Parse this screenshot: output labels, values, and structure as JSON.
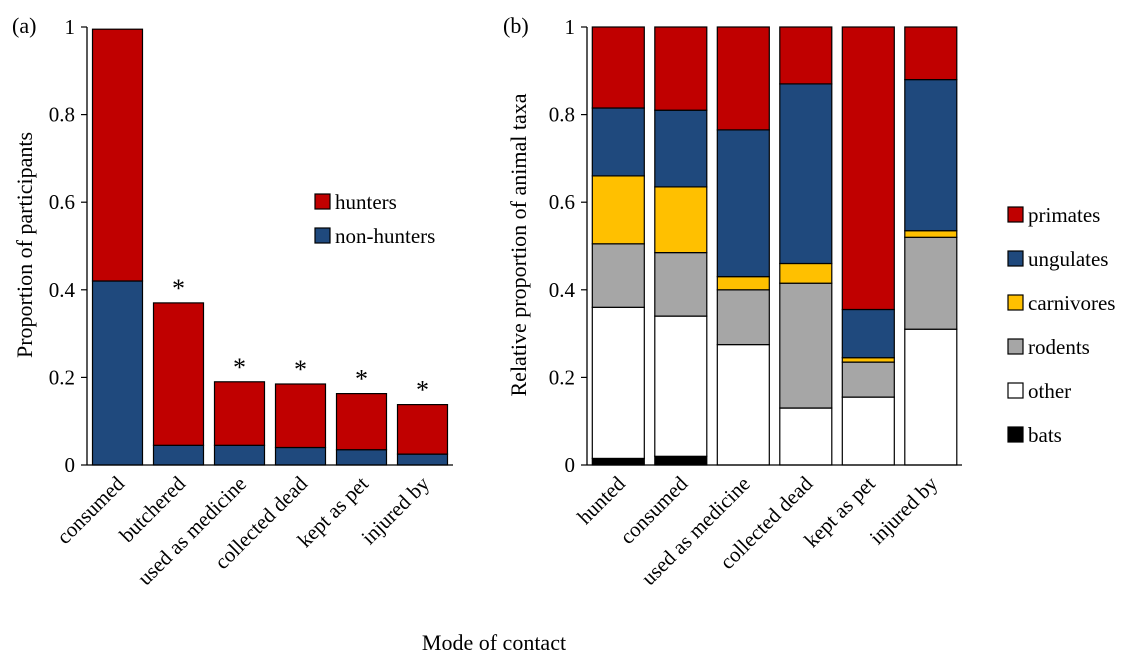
{
  "figure": {
    "shared_xlabel": "Mode of contact",
    "colors": {
      "hunters": "#c00000",
      "non_hunters": "#1f497d",
      "primates": "#c00000",
      "ungulates": "#1f497d",
      "carnivores": "#ffc000",
      "rodents": "#a6a6a6",
      "other": "#ffffff",
      "bats": "#000000"
    }
  },
  "chart_data": [
    {
      "panel_label": "(a)",
      "type": "bar",
      "stacked": true,
      "ylabel": "Proportion of participants",
      "ylim": [
        0,
        1
      ],
      "yticks": [
        0,
        0.2,
        0.4,
        0.6,
        0.8,
        1
      ],
      "ytick_labels": [
        "0",
        "0.2",
        "0.4",
        "0.6",
        "0.8",
        "1"
      ],
      "categories": [
        "consumed",
        "butchered",
        "used as medicine",
        "collected dead",
        "kept as pet",
        "injured by"
      ],
      "series": [
        {
          "name": "non-hunters",
          "values": [
            0.42,
            0.045,
            0.045,
            0.04,
            0.035,
            0.025
          ]
        },
        {
          "name": "hunters",
          "values": [
            0.575,
            0.325,
            0.145,
            0.145,
            0.128,
            0.113
          ]
        }
      ],
      "annotations": [
        "",
        "*",
        "*",
        "*",
        "*",
        "*"
      ],
      "legend": {
        "placement": "right",
        "entries": [
          "hunters",
          "non-hunters"
        ]
      },
      "grid": false
    },
    {
      "panel_label": "(b)",
      "type": "bar",
      "stacked": true,
      "ylabel": "Relative proportion of animal taxa",
      "ylim": [
        0,
        1
      ],
      "yticks": [
        0,
        0.2,
        0.4,
        0.6,
        0.8,
        1
      ],
      "ytick_labels": [
        "0",
        "0.2",
        "0.4",
        "0.6",
        "0.8",
        "1"
      ],
      "categories": [
        "hunted",
        "consumed",
        "used as medicine",
        "collected dead",
        "kept as pet",
        "injured by"
      ],
      "series": [
        {
          "name": "bats",
          "values": [
            0.015,
            0.02,
            0,
            0,
            0,
            0
          ]
        },
        {
          "name": "other",
          "values": [
            0.345,
            0.32,
            0.275,
            0.13,
            0.155,
            0.31
          ]
        },
        {
          "name": "rodents",
          "values": [
            0.145,
            0.145,
            0.125,
            0.285,
            0.08,
            0.21
          ]
        },
        {
          "name": "carnivores",
          "values": [
            0.155,
            0.15,
            0.03,
            0.045,
            0.01,
            0.015
          ]
        },
        {
          "name": "ungulates",
          "values": [
            0.155,
            0.175,
            0.335,
            0.41,
            0.11,
            0.345
          ]
        },
        {
          "name": "primates",
          "values": [
            0.185,
            0.19,
            0.235,
            0.13,
            0.645,
            0.12
          ]
        }
      ],
      "legend": {
        "placement": "right",
        "entries": [
          "primates",
          "ungulates",
          "carnivores",
          "rodents",
          "other",
          "bats"
        ]
      },
      "grid": false
    }
  ]
}
